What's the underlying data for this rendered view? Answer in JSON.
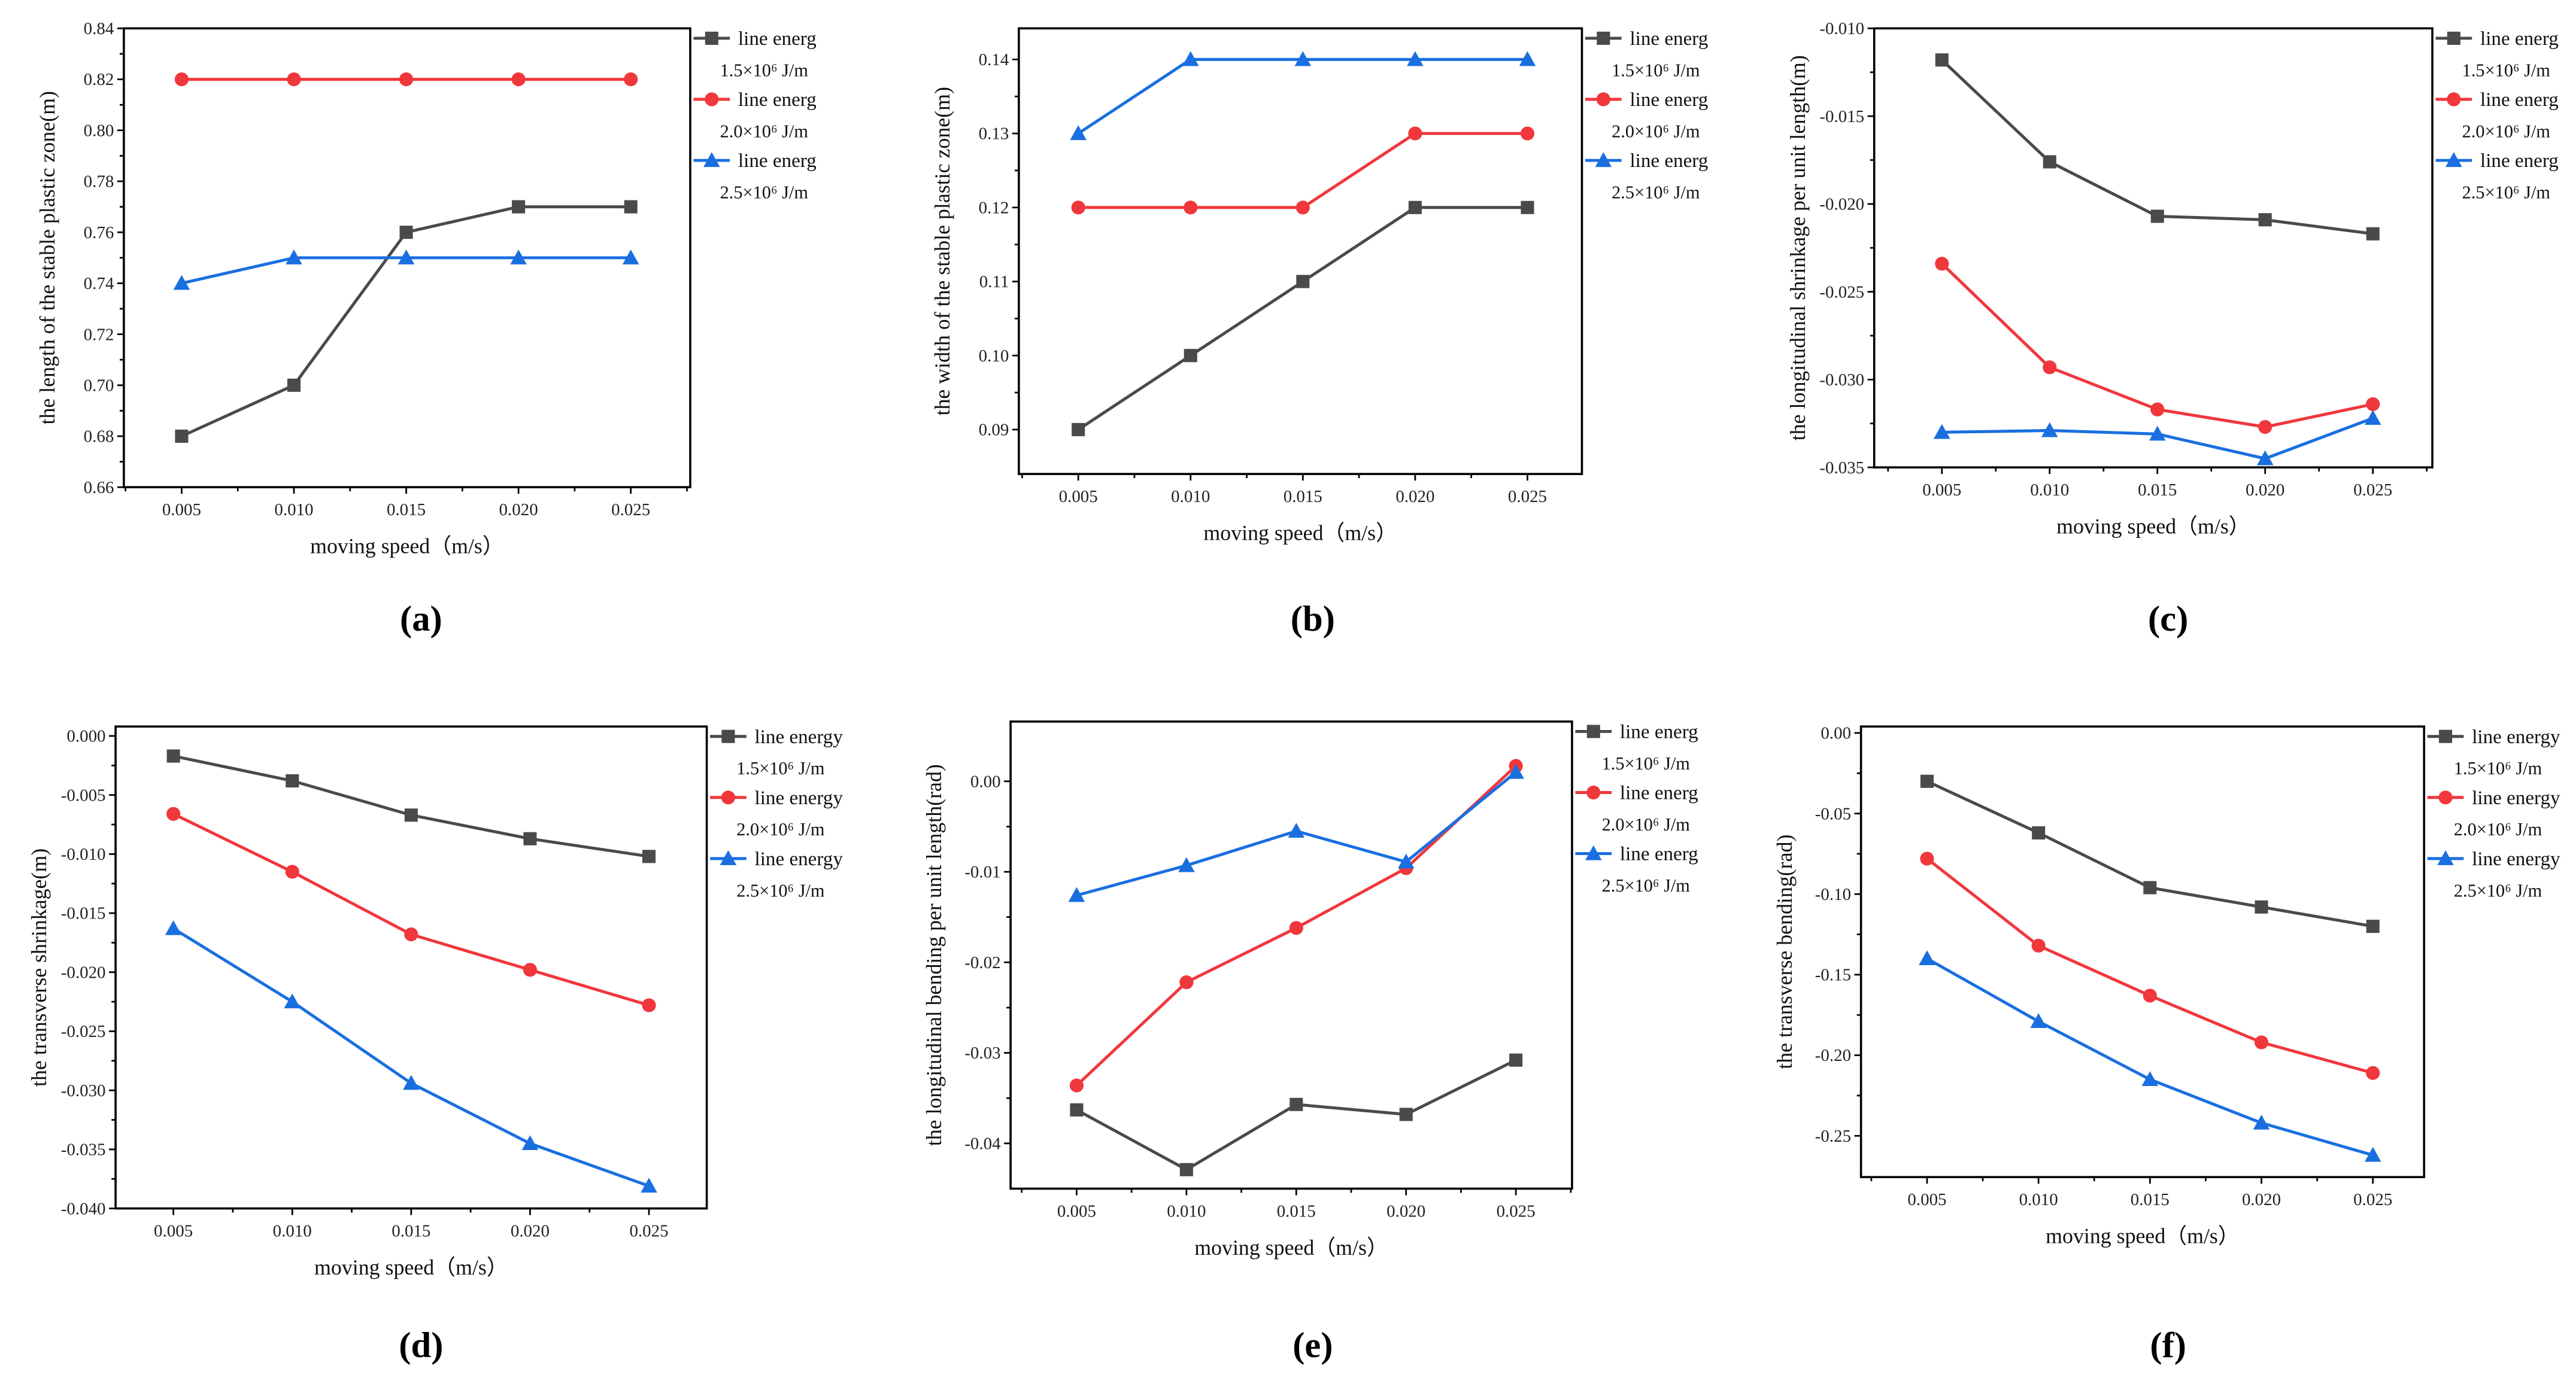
{
  "colors": {
    "black": "#4a4a4a",
    "red": "#f0373c",
    "blue": "#1a6fe0"
  },
  "chart_data": [
    {
      "type": "line",
      "panel_label": "(a)",
      "panel_letter": "a",
      "xlabel": "moving speed（m/s）",
      "ylabel": "the length of the stable plastic zone(m)",
      "x": [
        0.005,
        0.01,
        0.015,
        0.02,
        0.025
      ],
      "xticks": [
        "0.005",
        "0.010",
        "0.015",
        "0.020",
        "0.025"
      ],
      "ylim": [
        0.66,
        0.84
      ],
      "yticks": [
        "0.66",
        "0.68",
        "0.70",
        "0.72",
        "0.74",
        "0.76",
        "0.78",
        "0.80",
        "0.82",
        "0.84"
      ],
      "legend_position": "right",
      "series": [
        {
          "name": "line energ",
          "energy": "1.5×10⁶ J/m",
          "color": "#4a4a4a",
          "marker": "square",
          "values": [
            0.68,
            0.7,
            0.76,
            0.77,
            0.77
          ]
        },
        {
          "name": "line energ",
          "energy": "2.0×10⁶ J/m",
          "color": "#f0373c",
          "marker": "circle",
          "values": [
            0.82,
            0.82,
            0.82,
            0.82,
            0.82
          ]
        },
        {
          "name": "line energ",
          "energy": "2.5×10⁶ J/m",
          "color": "#1a6fe0",
          "marker": "triangle",
          "values": [
            0.74,
            0.75,
            0.75,
            0.75,
            0.75
          ]
        }
      ]
    },
    {
      "type": "line",
      "panel_label": "(b)",
      "panel_letter": "b",
      "xlabel": "moving speed（m/s）",
      "ylabel": "the width of the stable plastic zone(m)",
      "x": [
        0.005,
        0.01,
        0.015,
        0.02,
        0.025
      ],
      "xticks": [
        "0.005",
        "0.010",
        "0.015",
        "0.020",
        "0.025"
      ],
      "ylim": [
        0.084,
        0.1442
      ],
      "yticks": [
        "0.09",
        "0.10",
        "0.11",
        "0.12",
        "0.13",
        "0.14"
      ],
      "legend_position": "right",
      "series": [
        {
          "name": "line energ",
          "energy": "1.5×10⁶ J/m",
          "color": "#4a4a4a",
          "marker": "square",
          "values": [
            0.09,
            0.1,
            0.11,
            0.12,
            0.12
          ]
        },
        {
          "name": "line energ",
          "energy": "2.0×10⁶ J/m",
          "color": "#f0373c",
          "marker": "circle",
          "values": [
            0.12,
            0.12,
            0.12,
            0.13,
            0.13
          ]
        },
        {
          "name": "line energ",
          "energy": "2.5×10⁶ J/m",
          "color": "#1a6fe0",
          "marker": "triangle",
          "values": [
            0.13,
            0.14,
            0.14,
            0.14,
            0.14
          ]
        }
      ]
    },
    {
      "type": "line",
      "panel_label": "(c)",
      "panel_letter": "c",
      "xlabel": "moving speed（m/s）",
      "ylabel": "the longitudinal shrinkage per unit length(m)",
      "x": [
        0.005,
        0.01,
        0.015,
        0.02,
        0.025
      ],
      "xticks": [
        "0.005",
        "0.010",
        "0.015",
        "0.020",
        "0.025"
      ],
      "ylim": [
        -0.035,
        -0.01
      ],
      "yticks": [
        "-0.035",
        "-0.030",
        "-0.025",
        "-0.020",
        "-0.015",
        "-0.010"
      ],
      "legend_position": "right",
      "series": [
        {
          "name": "line energ",
          "energy": "1.5×10⁶ J/m",
          "color": "#4a4a4a",
          "marker": "square",
          "values": [
            -0.0118,
            -0.0176,
            -0.0207,
            -0.0209,
            -0.0217
          ]
        },
        {
          "name": "line energ",
          "energy": "2.0×10⁶ J/m",
          "color": "#f0373c",
          "marker": "circle",
          "values": [
            -0.0234,
            -0.0293,
            -0.0317,
            -0.0327,
            -0.0314
          ]
        },
        {
          "name": "line energ",
          "energy": "2.5×10⁶ J/m",
          "color": "#1a6fe0",
          "marker": "triangle",
          "values": [
            -0.033,
            -0.0329,
            -0.0331,
            -0.0345,
            -0.0322
          ]
        }
      ]
    },
    {
      "type": "line",
      "panel_label": "(d)",
      "panel_letter": "d",
      "xlabel": "moving speed（m/s）",
      "ylabel": "the transverse shrinkage(m)",
      "x": [
        0.005,
        0.01,
        0.015,
        0.02,
        0.025
      ],
      "xticks": [
        "0.005",
        "0.010",
        "0.015",
        "0.020",
        "0.025"
      ],
      "ylim": [
        -0.04,
        0.0008
      ],
      "yticks": [
        "-0.040",
        "-0.035",
        "-0.030",
        "-0.025",
        "-0.020",
        "-0.015",
        "-0.010",
        "-0.005",
        "0.000"
      ],
      "legend_position": "right",
      "series": [
        {
          "name": "line energy",
          "energy": "1.5×10⁶ J/m",
          "color": "#4a4a4a",
          "marker": "square",
          "values": [
            -0.0017,
            -0.0038,
            -0.0067,
            -0.0087,
            -0.0102
          ]
        },
        {
          "name": "line energy",
          "energy": "2.0×10⁶ J/m",
          "color": "#f0373c",
          "marker": "circle",
          "values": [
            -0.0066,
            -0.0115,
            -0.0168,
            -0.0198,
            -0.0228
          ]
        },
        {
          "name": "line energy",
          "energy": "2.5×10⁶ J/m",
          "color": "#1a6fe0",
          "marker": "triangle",
          "values": [
            -0.0163,
            -0.0225,
            -0.0294,
            -0.0345,
            -0.0381
          ]
        }
      ]
    },
    {
      "type": "line",
      "panel_label": "(e)",
      "panel_letter": "e",
      "xlabel": "moving speed（m/s）",
      "ylabel": "the longitudinal bending per unit length(rad)",
      "x": [
        0.005,
        0.01,
        0.015,
        0.02,
        0.025
      ],
      "xticks": [
        "0.005",
        "0.010",
        "0.015",
        "0.020",
        "0.025"
      ],
      "ylim": [
        -0.045,
        0.0066
      ],
      "yticks": [
        "-0.04",
        "-0.03",
        "-0.02",
        "-0.01",
        "0.00"
      ],
      "legend_position": "right",
      "series": [
        {
          "name": "line energ",
          "energy": "1.5×10⁶ J/m",
          "color": "#4a4a4a",
          "marker": "square",
          "values": [
            -0.0363,
            -0.0429,
            -0.0357,
            -0.0368,
            -0.0308
          ]
        },
        {
          "name": "line energ",
          "energy": "2.0×10⁶ J/m",
          "color": "#f0373c",
          "marker": "circle",
          "values": [
            -0.0336,
            -0.0222,
            -0.0162,
            -0.0096,
            0.0017
          ]
        },
        {
          "name": "line energ",
          "energy": "2.5×10⁶ J/m",
          "color": "#1a6fe0",
          "marker": "triangle",
          "values": [
            -0.0126,
            -0.0093,
            -0.0055,
            -0.0089,
            0.001
          ]
        }
      ]
    },
    {
      "type": "line",
      "panel_label": "(f)",
      "panel_letter": "f",
      "xlabel": "moving speed（m/s）",
      "ylabel": "the transverse bending(rad)",
      "x": [
        0.005,
        0.01,
        0.015,
        0.02,
        0.025
      ],
      "xticks": [
        "0.005",
        "0.010",
        "0.015",
        "0.020",
        "0.025"
      ],
      "ylim": [
        -0.2756,
        0.004
      ],
      "yticks": [
        "-0.25",
        "-0.20",
        "-0.15",
        "-0.10",
        "-0.05",
        "0.00"
      ],
      "legend_position": "right",
      "series": [
        {
          "name": "line energy",
          "energy": "1.5×10⁶ J/m",
          "color": "#4a4a4a",
          "marker": "square",
          "values": [
            -0.03,
            -0.062,
            -0.096,
            -0.108,
            -0.12
          ]
        },
        {
          "name": "line energy",
          "energy": "2.0×10⁶ J/m",
          "color": "#f0373c",
          "marker": "circle",
          "values": [
            -0.078,
            -0.132,
            -0.163,
            -0.192,
            -0.211
          ]
        },
        {
          "name": "line energy",
          "energy": "2.5×10⁶ J/m",
          "color": "#1a6fe0",
          "marker": "triangle",
          "values": [
            -0.14,
            -0.179,
            -0.215,
            -0.242,
            -0.262
          ]
        }
      ]
    }
  ]
}
